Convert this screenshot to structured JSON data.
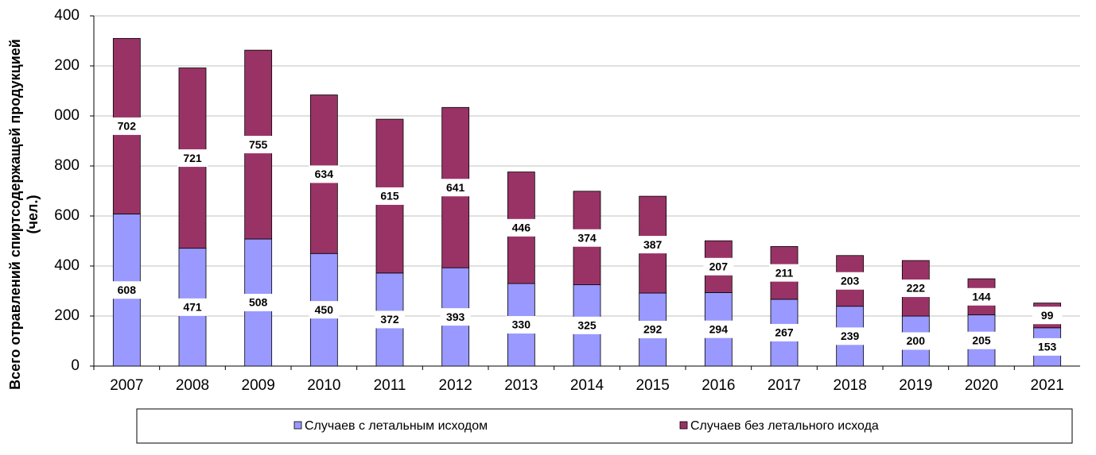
{
  "chart_data": {
    "type": "stacked_bar",
    "y_label": [
      "Всего отравлений спиртсодержащей продукцией",
      "(чел.)"
    ],
    "categories": [
      "2007",
      "2008",
      "2009",
      "2010",
      "2011",
      "2012",
      "2013",
      "2014",
      "2015",
      "2016",
      "2017",
      "2018",
      "2019",
      "2020",
      "2021"
    ],
    "series": [
      {
        "name": "Случаев с летальным  исходом",
        "color": "#9999ff",
        "values": [
          608,
          471,
          508,
          450,
          372,
          393,
          330,
          325,
          292,
          294,
          267,
          239,
          200,
          205,
          153
        ]
      },
      {
        "name": "Случаев без летального  исхода",
        "color": "#993366",
        "values": [
          702,
          721,
          755,
          634,
          615,
          641,
          446,
          374,
          387,
          207,
          211,
          203,
          222,
          144,
          99
        ]
      }
    ],
    "ylim": [
      0,
      1400
    ],
    "yticks": [
      0,
      200,
      400,
      600,
      800,
      {
        "value": 1000,
        "label": "000"
      },
      {
        "value": 1200,
        "label": "200"
      },
      {
        "value": 1400,
        "label": "400"
      }
    ],
    "grid": true,
    "legend": "bottom"
  }
}
